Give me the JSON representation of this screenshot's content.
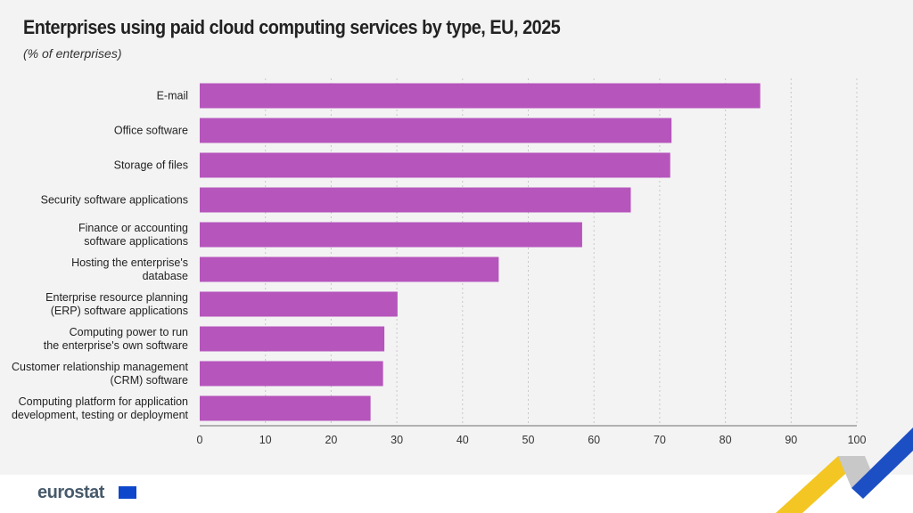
{
  "chart_data": {
    "type": "bar",
    "orientation": "horizontal",
    "title": "Enterprises using paid cloud computing services by type, EU, 2025",
    "subtitle": "(% of enterprises)",
    "categories": [
      [
        "E-mail"
      ],
      [
        "Office software"
      ],
      [
        "Storage of files"
      ],
      [
        "Security software applications"
      ],
      [
        "Finance or accounting",
        "software applications"
      ],
      [
        "Hosting the enterprise's",
        "database"
      ],
      [
        "Enterprise resource planning",
        "(ERP) software applications"
      ],
      [
        "Computing power to run",
        "the enterprise's own software"
      ],
      [
        "Customer relationship management",
        "(CRM) software"
      ],
      [
        "Computing platform for application",
        "development, testing or deployment"
      ]
    ],
    "values": [
      85.3,
      71.8,
      71.6,
      65.6,
      58.2,
      45.5,
      30.1,
      28.1,
      27.9,
      26.0
    ],
    "xlim": [
      0,
      100
    ],
    "ticks": [
      0,
      10,
      20,
      30,
      40,
      50,
      60,
      70,
      80,
      90,
      100
    ],
    "grid": "vertical dashed",
    "bar_color": "#b655bc"
  },
  "footer": {
    "logo": "eurostat"
  }
}
